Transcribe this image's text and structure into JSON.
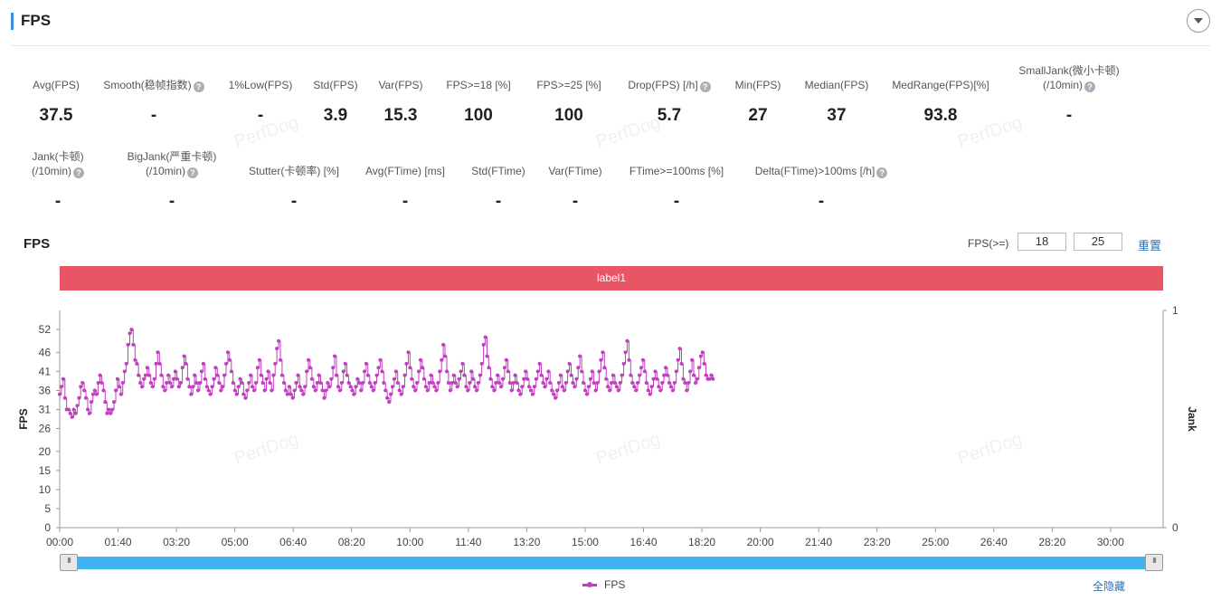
{
  "header": {
    "title": "FPS"
  },
  "metrics_row1": [
    {
      "label": "Avg(FPS)",
      "value": "37.5",
      "help": false
    },
    {
      "label": "Smooth(稳帧指数)",
      "value": "-",
      "help": true
    },
    {
      "label": "1%Low(FPS)",
      "value": "-",
      "help": false
    },
    {
      "label": "Std(FPS)",
      "value": "3.9",
      "help": false
    },
    {
      "label": "Var(FPS)",
      "value": "15.3",
      "help": false
    },
    {
      "label": "FPS>=18 [%]",
      "value": "100",
      "help": false
    },
    {
      "label": "FPS>=25 [%]",
      "value": "100",
      "help": false
    },
    {
      "label": "Drop(FPS) [/h]",
      "value": "5.7",
      "help": true
    },
    {
      "label": "Min(FPS)",
      "value": "27",
      "help": false
    },
    {
      "label": "Median(FPS)",
      "value": "37",
      "help": false
    },
    {
      "label": "MedRange(FPS)[%]",
      "value": "93.8",
      "help": false
    },
    {
      "label": "SmallJank(微小卡顿)",
      "label2": "(/10min)",
      "value": "-",
      "help": true
    }
  ],
  "metrics_row2": [
    {
      "label": "Jank(卡顿)",
      "label2": "(/10min)",
      "value": "-",
      "help": true
    },
    {
      "label": "BigJank(严重卡顿)",
      "label2": "(/10min)",
      "value": "-",
      "help": true
    },
    {
      "label": "Stutter(卡顿率) [%]",
      "value": "-",
      "help": false
    },
    {
      "label": "Avg(FTime) [ms]",
      "value": "-",
      "help": false
    },
    {
      "label": "Std(FTime)",
      "value": "-",
      "help": false
    },
    {
      "label": "Var(FTime)",
      "value": "-",
      "help": false
    },
    {
      "label": "FTime>=100ms [%]",
      "value": "-",
      "help": false
    },
    {
      "label": "Delta(FTime)>100ms [/h]",
      "value": "-",
      "help": true
    }
  ],
  "watermark": "PerfDog",
  "help_glyph": "?",
  "chart_header": {
    "title": "FPS",
    "threshold_label": "FPS(>=)",
    "threshold1": "18",
    "threshold2": "25",
    "reset_label": "重置"
  },
  "label_bar": {
    "text": "label1",
    "color": "#e85565"
  },
  "legend": {
    "series": "FPS",
    "hide_all": "全隐藏"
  },
  "colors": {
    "series": "#c040c0",
    "slider": "#3fb3f0",
    "link": "#2e6fb5"
  },
  "chart_data": {
    "type": "line",
    "ylabel": "FPS",
    "y2label": "Jank",
    "ylim": [
      0,
      57
    ],
    "y_ticks": [
      0,
      5,
      10,
      15,
      20,
      26,
      31,
      36,
      41,
      46,
      52
    ],
    "y2_ticks": [
      0,
      1
    ],
    "x_tick_labels": [
      "00:00",
      "01:40",
      "03:20",
      "05:00",
      "06:40",
      "08:20",
      "10:00",
      "11:40",
      "13:20",
      "15:00",
      "16:40",
      "18:20",
      "20:00",
      "21:40",
      "23:20",
      "25:00",
      "26:40",
      "28:20",
      "30:00"
    ],
    "x_tick_seconds": [
      0,
      100,
      200,
      300,
      400,
      500,
      600,
      700,
      800,
      900,
      1000,
      1100,
      1200,
      1300,
      1400,
      1500,
      1600,
      1700,
      1800
    ],
    "xlim_seconds": [
      0,
      1890
    ],
    "series": [
      {
        "name": "FPS",
        "sample_interval_s": 3,
        "values": [
          35,
          37,
          39,
          34,
          31,
          31,
          30,
          29,
          31,
          30,
          32,
          34,
          37,
          38,
          36,
          34,
          31,
          30,
          33,
          35,
          36,
          35,
          38,
          40,
          38,
          36,
          33,
          30,
          31,
          30,
          31,
          33,
          36,
          39,
          37,
          35,
          38,
          41,
          43,
          48,
          51,
          52,
          48,
          44,
          43,
          40,
          38,
          37,
          39,
          40,
          42,
          40,
          38,
          37,
          39,
          43,
          46,
          43,
          40,
          37,
          36,
          38,
          40,
          38,
          37,
          39,
          41,
          39,
          37,
          38,
          42,
          45,
          43,
          39,
          37,
          35,
          37,
          40,
          38,
          36,
          38,
          41,
          43,
          39,
          37,
          36,
          35,
          37,
          39,
          42,
          40,
          38,
          36,
          37,
          40,
          43,
          46,
          44,
          41,
          38,
          36,
          35,
          37,
          39,
          38,
          35,
          34,
          36,
          38,
          40,
          37,
          36,
          38,
          42,
          44,
          40,
          38,
          36,
          39,
          41,
          38,
          36,
          40,
          43,
          47,
          49,
          44,
          40,
          38,
          36,
          35,
          37,
          35,
          34,
          36,
          38,
          40,
          37,
          36,
          35,
          37,
          41,
          44,
          42,
          39,
          37,
          36,
          38,
          40,
          38,
          36,
          34,
          36,
          38,
          37,
          39,
          42,
          45,
          40,
          37,
          36,
          38,
          41,
          43,
          40,
          38,
          37,
          36,
          35,
          37,
          39,
          38,
          36,
          38,
          41,
          43,
          40,
          38,
          37,
          36,
          38,
          40,
          42,
          44,
          41,
          38,
          36,
          34,
          33,
          35,
          37,
          39,
          41,
          38,
          36,
          35,
          37,
          40,
          43,
          46,
          42,
          39,
          37,
          36,
          38,
          41,
          44,
          42,
          39,
          37,
          36,
          38,
          40,
          38,
          37,
          36,
          38,
          41,
          44,
          48,
          45,
          41,
          38,
          36,
          38,
          40,
          38,
          37,
          39,
          41,
          43,
          40,
          37,
          36,
          38,
          41,
          39,
          37,
          36,
          38,
          40,
          43,
          48,
          50,
          45,
          42,
          39,
          37,
          36,
          38,
          40,
          38,
          37,
          39,
          42,
          44,
          41,
          38,
          36,
          38,
          40,
          38,
          36,
          35,
          37,
          39,
          41,
          39,
          37,
          36,
          35,
          37,
          39,
          41,
          43,
          40,
          38,
          37,
          39,
          41,
          38,
          36,
          35,
          34,
          36,
          38,
          40,
          37,
          36,
          38,
          41,
          43,
          40,
          38,
          37,
          39,
          42,
          45,
          41,
          38,
          36,
          35,
          37,
          39,
          41,
          38,
          36,
          38,
          41,
          44,
          46,
          42,
          39,
          37,
          36,
          38,
          40,
          38,
          37,
          36,
          38,
          40,
          43,
          46,
          49,
          44,
          40,
          38,
          37,
          36,
          38,
          40,
          42,
          44,
          41,
          38,
          36,
          35,
          37,
          39,
          41,
          39,
          37,
          36,
          38,
          40,
          42,
          40,
          38,
          37,
          36,
          38,
          41,
          44,
          47,
          43,
          39,
          38,
          36,
          38,
          41,
          44,
          40,
          38,
          39,
          42,
          45,
          46,
          43,
          40,
          39,
          39,
          40,
          39
        ]
      }
    ]
  }
}
